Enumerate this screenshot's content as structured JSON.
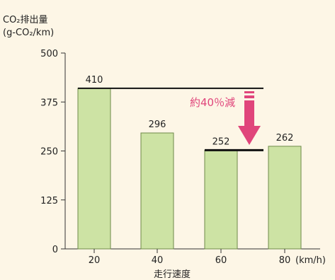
{
  "chart_data": {
    "type": "bar",
    "ylabel_line1": "CO₂排出量",
    "ylabel_line2": "(g-CO₂/km)",
    "xlabel": "走行速度",
    "x_unit": "(km/h)",
    "categories": [
      "20",
      "40",
      "60",
      "80"
    ],
    "values": [
      410,
      296,
      252,
      262
    ],
    "data_labels": [
      "410",
      "296",
      "252",
      "262"
    ],
    "ylim": [
      0,
      500
    ],
    "yticks": [
      "500",
      "375",
      "250",
      "125",
      "0"
    ],
    "ytick_values": [
      500,
      375,
      250,
      125,
      0
    ],
    "annotation": "約40％減",
    "reference_lines": [
      410,
      252
    ],
    "grid": false,
    "colors": {
      "bar_fill": "#cde3a4",
      "bar_stroke": "#6f8a4a",
      "arrow": "#e0457b",
      "axis": "#333333",
      "background": "#fdf6e6"
    }
  }
}
